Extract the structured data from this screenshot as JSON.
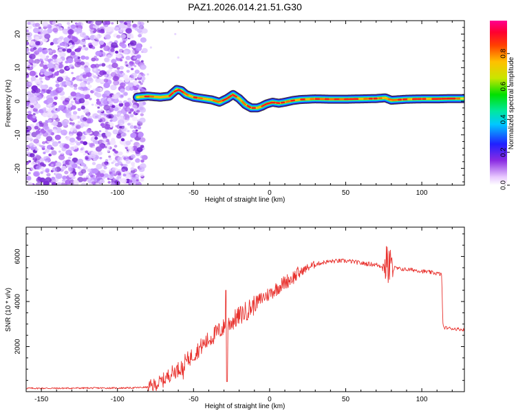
{
  "title": "PAZ1.2026.014.21.51.G30",
  "chart_data": [
    {
      "type": "heatmap",
      "xlabel": "Height of straight line (km)",
      "ylabel": "Frequency (Hz)",
      "xlim": [
        -160,
        128
      ],
      "ylim": [
        -25,
        24
      ],
      "xticks": [
        -150,
        -100,
        -50,
        0,
        50,
        100
      ],
      "yticks": [
        -20,
        -10,
        0,
        10,
        20
      ],
      "colorbar": {
        "label": "Normalized spectral amplitude",
        "range": [
          0,
          1
        ],
        "ticks": [
          0.0,
          0.2,
          0.4,
          0.6,
          0.8
        ]
      },
      "noise_region_x": [
        -160,
        -80
      ],
      "ridge": {
        "x": [
          -87,
          -80,
          -72,
          -66,
          -61,
          -58,
          -55,
          -50,
          -44,
          -38,
          -33,
          -28,
          -24,
          -20,
          -16,
          -12,
          -8,
          -5,
          -2,
          2,
          6,
          10,
          15,
          20,
          30,
          40,
          50,
          60,
          70,
          76,
          80,
          90,
          100,
          110,
          120,
          128
        ],
        "freq": [
          1.2,
          1.5,
          1.2,
          1.5,
          3.5,
          3.2,
          2.0,
          1.2,
          0.8,
          0.4,
          -0.3,
          0.8,
          2.0,
          0.8,
          -1.0,
          -2.0,
          -2.0,
          -1.5,
          -0.8,
          -0.3,
          -0.6,
          -0.3,
          0.2,
          0.5,
          0.7,
          0.6,
          0.6,
          0.7,
          0.8,
          1.0,
          0.3,
          0.6,
          0.7,
          0.7,
          0.8,
          0.8
        ]
      }
    },
    {
      "type": "line",
      "xlabel": "Height of straight line (km)",
      "ylabel": "SNR (10 * v/v)",
      "xlim": [
        -160,
        128
      ],
      "ylim": [
        0,
        7300
      ],
      "xticks": [
        -150,
        -100,
        -50,
        0,
        50,
        100
      ],
      "yticks": [
        2000,
        4000,
        6000
      ],
      "series": [
        {
          "name": "SNR",
          "color": "#e8302c",
          "x": [
            -160,
            -140,
            -120,
            -100,
            -90,
            -80,
            -75,
            -70,
            -65,
            -60,
            -55,
            -50,
            -45,
            -40,
            -35,
            -30,
            -25,
            -20,
            -15,
            -10,
            -5,
            0,
            5,
            10,
            15,
            20,
            25,
            30,
            35,
            40,
            45,
            50,
            55,
            60,
            65,
            70,
            75,
            78,
            80,
            85,
            90,
            95,
            100,
            105,
            110,
            113,
            114,
            120,
            128
          ],
          "values": [
            150,
            150,
            160,
            160,
            170,
            200,
            300,
            500,
            800,
            1000,
            1350,
            1650,
            2000,
            2300,
            2600,
            2850,
            3100,
            3350,
            3600,
            3850,
            4150,
            4350,
            4600,
            4850,
            5050,
            5300,
            5500,
            5650,
            5730,
            5780,
            5800,
            5800,
            5770,
            5700,
            5670,
            5630,
            5550,
            5600,
            5500,
            5450,
            5420,
            5400,
            5350,
            5300,
            5250,
            5200,
            2850,
            2800,
            2750
          ]
        }
      ]
    }
  ]
}
